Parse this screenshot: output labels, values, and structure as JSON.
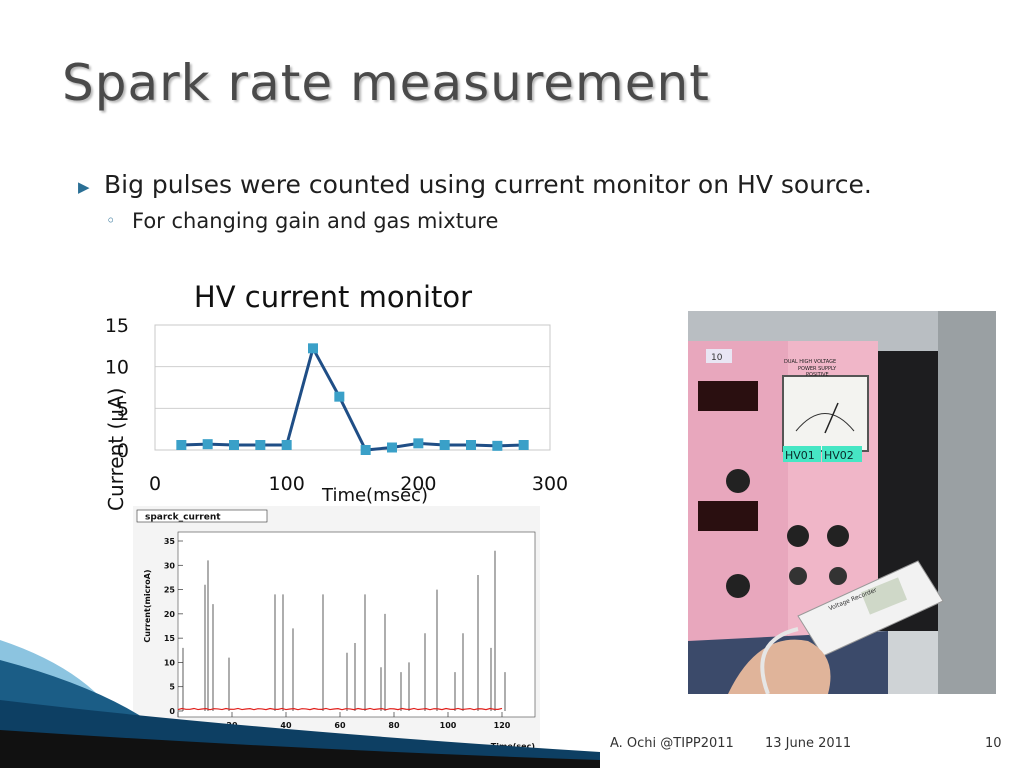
{
  "slide": {
    "title": "Spark rate measurement",
    "bullets": [
      {
        "level": 1,
        "marker": "▶",
        "text": "Big pulses were counted using current monitor on HV source."
      },
      {
        "level": 2,
        "marker": "◦",
        "text": "For changing gain and gas mixture"
      }
    ]
  },
  "chart_data": {
    "type": "line",
    "title": "HV current monitor",
    "xlabel": "Time(msec)",
    "ylabel": "Current (μA)",
    "xlim": [
      0,
      300
    ],
    "ylim": [
      0,
      15
    ],
    "xticks": [
      0,
      100,
      200,
      300
    ],
    "yticks": [
      0,
      5,
      10,
      15
    ],
    "grid": "horizontal",
    "x": [
      20,
      40,
      60,
      80,
      100,
      120,
      140,
      160,
      180,
      200,
      220,
      240,
      260,
      280
    ],
    "values": [
      0.6,
      0.7,
      0.6,
      0.6,
      0.6,
      12.2,
      6.4,
      0.0,
      0.3,
      0.8,
      0.6,
      0.6,
      0.5,
      0.6
    ],
    "color": "#1f4e86",
    "marker_color": "#3aa0c8"
  },
  "histogram": {
    "title": "sparck_current",
    "xlabel": "Time(sec)",
    "ylabel": "Current(microA)",
    "xticks": [
      "0",
      "20",
      "40",
      "60",
      "80",
      "100",
      "120"
    ],
    "yticks": [
      "0",
      "5",
      "10",
      "15",
      "20",
      "25",
      "30",
      "35"
    ]
  },
  "photo": {
    "description_icon": "hv-power-supply-photo",
    "labels": [
      "HV01",
      "HV02",
      "DUAL HIGH VOLTAGE",
      "POWER SUPPLY",
      "POSITIVE",
      "Voltage Recorder",
      "10"
    ]
  },
  "footer": {
    "author": "A. Ochi  @TIPP2011",
    "date": "13 June 2011",
    "page": "10"
  },
  "colors": {
    "title": "#4a4a4a",
    "bullet_marker": "#2a6f95",
    "wave_dark": "#1b5d86",
    "wave_light": "#8cc4e0"
  }
}
